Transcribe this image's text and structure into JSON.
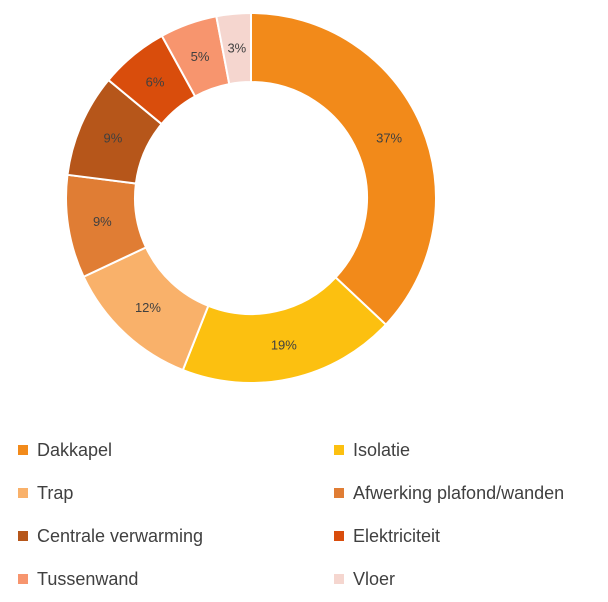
{
  "chart_data": {
    "type": "pie",
    "subtype": "donut",
    "title": "",
    "categories": [
      "Dakkapel",
      "Isolatie",
      "Trap",
      "Afwerking plafond/wanden",
      "Centrale verwarming",
      "Elektriciteit",
      "Tussenwand",
      "Vloer"
    ],
    "values": [
      37,
      19,
      12,
      9,
      9,
      6,
      5,
      3
    ],
    "labels": [
      "37%",
      "19%",
      "12%",
      "9%",
      "9%",
      "6%",
      "5%",
      "3%"
    ],
    "colors": [
      "#F28A1A",
      "#FCC010",
      "#F9B16A",
      "#E07D34",
      "#B6561A",
      "#D94D0C",
      "#F7956E",
      "#F5D6CF"
    ],
    "unit": "%",
    "legend_position": "bottom",
    "grid": false
  },
  "legend": {
    "items": [
      {
        "label": "Dakkapel",
        "color": "#F28A1A"
      },
      {
        "label": "Isolatie",
        "color": "#FCC010"
      },
      {
        "label": "Trap",
        "color": "#F9B16A"
      },
      {
        "label": "Afwerking plafond/wanden",
        "color": "#E07D34"
      },
      {
        "label": "Centrale verwarming",
        "color": "#B6561A"
      },
      {
        "label": "Elektriciteit",
        "color": "#D94D0C"
      },
      {
        "label": "Tussenwand",
        "color": "#F7956E"
      },
      {
        "label": "Vloer",
        "color": "#F5D6CF"
      }
    ]
  }
}
